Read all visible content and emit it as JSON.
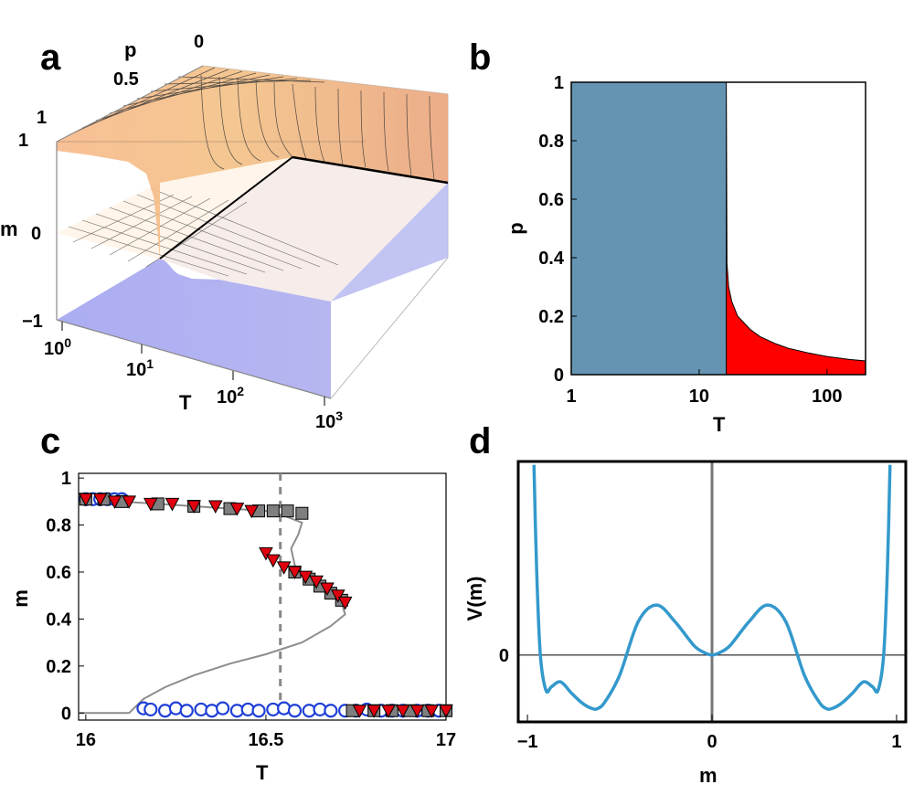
{
  "panel_labels": [
    "a",
    "b",
    "c",
    "d"
  ],
  "chart_data": [
    {
      "panel": "a",
      "type": "surface3d",
      "axes": {
        "T": {
          "label": "T",
          "scale": "log",
          "ticks": [
            "10",
            "10",
            "10",
            "10"
          ],
          "tick_exponents": [
            "0",
            "1",
            "2",
            "3"
          ]
        },
        "p": {
          "label": "p",
          "ticks": [
            "0",
            "0.5",
            "1"
          ]
        },
        "m": {
          "label": "m",
          "ticks": [
            "1",
            "0",
            "−1"
          ]
        }
      },
      "surfaces": [
        {
          "color": "#f2a56b",
          "description_m": "upper branch m≈1 at low T, drops to 0 near T≈16"
        },
        {
          "color": "#7b7fe0",
          "description_m": "lower branch m≈−1 at low T, rises to 0 near T≈16"
        },
        {
          "color": "#fff3e6",
          "description_m": "m=0 plane"
        }
      ],
      "colors": {
        "upper": "#f2a56b",
        "lower": "#7b7fe0",
        "zero_plane": "#fff3e6"
      }
    },
    {
      "panel": "b",
      "type": "area",
      "xlabel": "T",
      "ylabel": "p",
      "x_scale": "log",
      "xlim": [
        1,
        200
      ],
      "ylim": [
        0,
        1
      ],
      "x_ticks": [
        "1",
        "10",
        "100"
      ],
      "y_ticks": [
        "0",
        "0.2",
        "0.4",
        "0.6",
        "0.8",
        "1"
      ],
      "regions": [
        {
          "color": "#6494b2",
          "x_range": [
            1,
            16.3
          ],
          "y_range": [
            0,
            1
          ]
        },
        {
          "color": "#ff0000",
          "boundary_T": [
            16.3,
            16.5,
            17,
            18,
            20,
            25,
            30,
            40,
            50,
            70,
            100,
            150,
            200
          ],
          "boundary_p": [
            1.0,
            0.38,
            0.3,
            0.25,
            0.2,
            0.155,
            0.13,
            0.105,
            0.09,
            0.075,
            0.062,
            0.052,
            0.047
          ]
        }
      ]
    },
    {
      "panel": "c",
      "type": "scatter",
      "xlabel": "T",
      "ylabel": "m",
      "xlim": [
        15.98,
        17.0
      ],
      "ylim": [
        -0.03,
        1.02
      ],
      "x_ticks": [
        "16",
        "16.5",
        "17"
      ],
      "y_ticks": [
        "0",
        "0.2",
        "0.4",
        "0.6",
        "0.8",
        "1"
      ],
      "dashed_line_T": 16.54,
      "theory_curve": {
        "color": "#8c8c8c",
        "T": [
          15.98,
          16.12,
          16.16,
          16.22,
          16.3,
          16.4,
          16.5,
          16.6,
          16.68,
          16.72,
          16.71,
          16.65,
          16.6,
          16.58,
          16.57,
          16.59,
          16.6,
          16.55,
          16.5,
          16.4,
          16.3,
          16.2,
          16.1,
          16.0
        ],
        "m": [
          0.0,
          0.0,
          0.06,
          0.11,
          0.16,
          0.21,
          0.25,
          0.3,
          0.37,
          0.42,
          0.47,
          0.54,
          0.59,
          0.63,
          0.7,
          0.76,
          0.81,
          0.84,
          0.86,
          0.87,
          0.88,
          0.89,
          0.9,
          0.91
        ]
      },
      "series": [
        {
          "marker": "circle",
          "color": "#1f3fd6",
          "T": [
            16.0,
            16.02,
            16.04,
            16.06,
            16.08,
            16.1,
            16.16,
            16.18,
            16.22,
            16.25,
            16.28,
            16.32,
            16.35,
            16.38,
            16.42,
            16.45,
            16.48,
            16.52,
            16.55,
            16.58,
            16.62,
            16.65,
            16.68,
            16.72,
            16.75,
            16.78,
            16.82,
            16.85,
            16.88,
            16.92,
            16.95,
            16.98
          ],
          "m": [
            0.91,
            0.91,
            0.91,
            0.91,
            0.91,
            0.91,
            0.02,
            0.015,
            0.01,
            0.02,
            0.01,
            0.015,
            0.01,
            0.02,
            0.01,
            0.015,
            0.01,
            0.015,
            0.02,
            0.01,
            0.01,
            0.015,
            0.01,
            0.01,
            0.01,
            0.015,
            0.01,
            0.01,
            0.01,
            0.01,
            0.01,
            0.01
          ]
        },
        {
          "marker": "square",
          "color": "#7f7f7f",
          "T": [
            16.0,
            16.05,
            16.1,
            16.2,
            16.3,
            16.4,
            16.48,
            16.52,
            16.56,
            16.6,
            16.58,
            16.62,
            16.65,
            16.68,
            16.71,
            16.74,
            16.8,
            16.85,
            16.9,
            16.95,
            17.0
          ],
          "m": [
            0.91,
            0.91,
            0.9,
            0.89,
            0.88,
            0.87,
            0.86,
            0.86,
            0.86,
            0.85,
            0.6,
            0.57,
            0.54,
            0.51,
            0.48,
            0.01,
            0.01,
            0.01,
            0.01,
            0.01,
            0.01
          ]
        },
        {
          "marker": "triangle-down",
          "color": "#e0000f",
          "T": [
            16.0,
            16.04,
            16.08,
            16.12,
            16.18,
            16.24,
            16.3,
            16.36,
            16.42,
            16.46,
            16.5,
            16.52,
            16.55,
            16.58,
            16.61,
            16.64,
            16.67,
            16.7,
            16.72,
            16.76,
            16.8,
            16.84,
            16.88,
            16.92,
            16.96,
            17.0
          ],
          "m": [
            0.91,
            0.91,
            0.9,
            0.9,
            0.89,
            0.89,
            0.88,
            0.88,
            0.87,
            0.86,
            0.68,
            0.65,
            0.62,
            0.6,
            0.58,
            0.56,
            0.53,
            0.5,
            0.47,
            0.01,
            0.01,
            0.01,
            0.01,
            0.01,
            0.01,
            0.01
          ]
        }
      ]
    },
    {
      "panel": "d",
      "type": "line",
      "xlabel": "m",
      "ylabel": "V(m)",
      "xlim": [
        -1.05,
        1.05
      ],
      "ylim": [
        -0.2,
        0.58
      ],
      "x_ticks": [
        "−1",
        "0",
        "1"
      ],
      "y_ticks": [
        "0"
      ],
      "series": [
        {
          "color": "#3399cc",
          "m": [
            -0.965,
            -0.95,
            -0.93,
            -0.9,
            -0.87,
            -0.82,
            -0.76,
            -0.7,
            -0.65,
            -0.62,
            -0.58,
            -0.5,
            -0.4,
            -0.3,
            -0.2,
            -0.1,
            -0.05,
            0.0,
            0.05,
            0.1,
            0.2,
            0.3,
            0.4,
            0.5,
            0.58,
            0.62,
            0.65,
            0.7,
            0.76,
            0.82,
            0.87,
            0.9,
            0.93,
            0.95,
            0.965
          ],
          "V": [
            0.57,
            0.25,
            0.0,
            -0.105,
            -0.095,
            -0.08,
            -0.115,
            -0.145,
            -0.16,
            -0.16,
            -0.14,
            -0.06,
            0.1,
            0.15,
            0.1,
            0.03,
            0.01,
            0.0,
            0.01,
            0.03,
            0.1,
            0.15,
            0.1,
            -0.06,
            -0.14,
            -0.16,
            -0.16,
            -0.145,
            -0.115,
            -0.08,
            -0.095,
            -0.105,
            0.0,
            0.25,
            0.57
          ]
        }
      ]
    }
  ]
}
